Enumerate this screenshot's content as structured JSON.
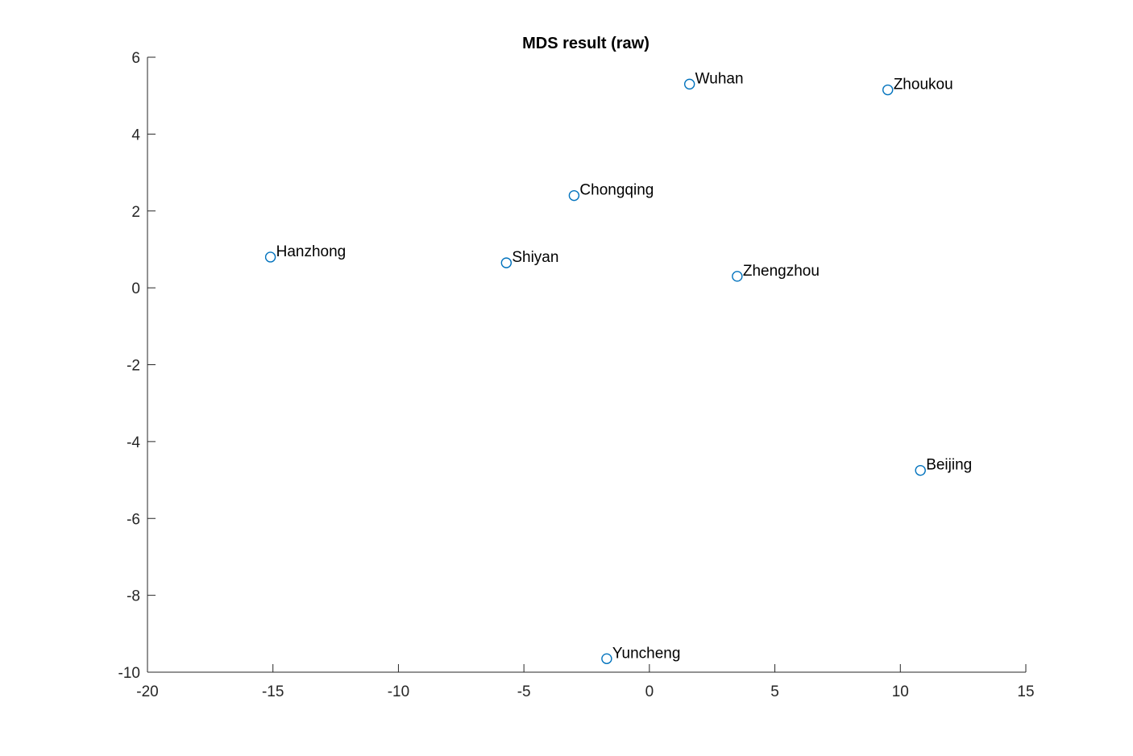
{
  "chart_data": {
    "type": "scatter",
    "title": "MDS result (raw)",
    "xlabel": "",
    "ylabel": "",
    "xlim": [
      -20,
      15
    ],
    "ylim": [
      -10,
      6
    ],
    "xticks": [
      -20,
      -15,
      -10,
      -5,
      0,
      5,
      10,
      15
    ],
    "yticks": [
      -10,
      -8,
      -6,
      -4,
      -2,
      0,
      2,
      4,
      6
    ],
    "grid": false,
    "legend": "none",
    "marker": "circle-open",
    "marker_color": "#0072BD",
    "points": [
      {
        "label": "Wuhan",
        "x": 1.6,
        "y": 5.3
      },
      {
        "label": "Zhoukou",
        "x": 9.5,
        "y": 5.15
      },
      {
        "label": "Chongqing",
        "x": -3.0,
        "y": 2.4
      },
      {
        "label": "Hanzhong",
        "x": -15.1,
        "y": 0.8
      },
      {
        "label": "Shiyan",
        "x": -5.7,
        "y": 0.65
      },
      {
        "label": "Zhengzhou",
        "x": 3.5,
        "y": 0.3
      },
      {
        "label": "Beijing",
        "x": 10.8,
        "y": -4.75
      },
      {
        "label": "Yuncheng",
        "x": -1.7,
        "y": -9.65
      }
    ]
  }
}
